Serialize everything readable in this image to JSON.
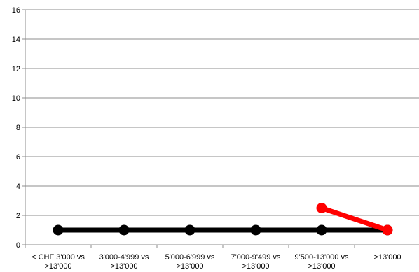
{
  "chart_data": {
    "type": "line",
    "title": "",
    "xlabel": "",
    "ylabel": "",
    "ylim": [
      0,
      16
    ],
    "yticks": [
      0,
      2,
      4,
      6,
      8,
      10,
      12,
      14,
      16
    ],
    "grid": true,
    "legend": "none",
    "categories": [
      [
        "< CHF 3'000 vs",
        ">13'000"
      ],
      [
        "3'000-4'999 vs",
        ">13'000"
      ],
      [
        "5'000-6'999 vs",
        ">13'000"
      ],
      [
        "7'000-9'499 vs",
        ">13'000"
      ],
      [
        "9'500-13'000 vs",
        ">13'000"
      ],
      [
        ">13'000"
      ]
    ],
    "series": [
      {
        "color": "#000000",
        "values": [
          1,
          1,
          1,
          1,
          1,
          1
        ]
      },
      {
        "color": "#ff0000",
        "values": [
          null,
          null,
          null,
          null,
          2.5,
          1
        ]
      }
    ]
  }
}
